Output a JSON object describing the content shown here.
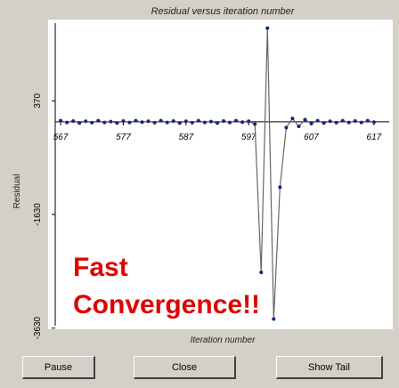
{
  "chart_data": {
    "type": "line",
    "title": "Residual versus iteration number",
    "x_label": "Iteration number",
    "y_label": "Residual",
    "annotation": [
      "Fast",
      "Convergence!!"
    ],
    "x": [
      567,
      568,
      569,
      570,
      571,
      572,
      573,
      574,
      575,
      576,
      577,
      578,
      579,
      580,
      581,
      582,
      583,
      584,
      585,
      586,
      587,
      588,
      589,
      590,
      591,
      592,
      593,
      594,
      595,
      596,
      597,
      598,
      599,
      600,
      601,
      602,
      603,
      604,
      605,
      606,
      607,
      608,
      609,
      610,
      611,
      612,
      613,
      614,
      615,
      616,
      617
    ],
    "series": [
      {
        "name": "Residual",
        "color": "#1a237e",
        "values": [
          20,
          -10,
          15,
          -20,
          10,
          -15,
          20,
          -10,
          5,
          -20,
          15,
          -10,
          20,
          -5,
          10,
          -15,
          20,
          -10,
          15,
          -20,
          10,
          -15,
          20,
          -10,
          5,
          -20,
          15,
          -10,
          20,
          -5,
          10,
          -40,
          -2650,
          1650,
          -3470,
          -1150,
          -100,
          60,
          -80,
          40,
          -30,
          20,
          -20,
          10,
          -15,
          20,
          -10,
          15,
          -10,
          20,
          -5
        ]
      }
    ],
    "xlim": [
      565,
      620
    ],
    "xticks": [
      567,
      577,
      587,
      597,
      607,
      617
    ],
    "ylim": [
      -3650,
      1800
    ],
    "yticks": [
      370,
      -1630,
      -3630
    ]
  },
  "buttons": [
    "Pause",
    "Close",
    "Show Tail"
  ]
}
